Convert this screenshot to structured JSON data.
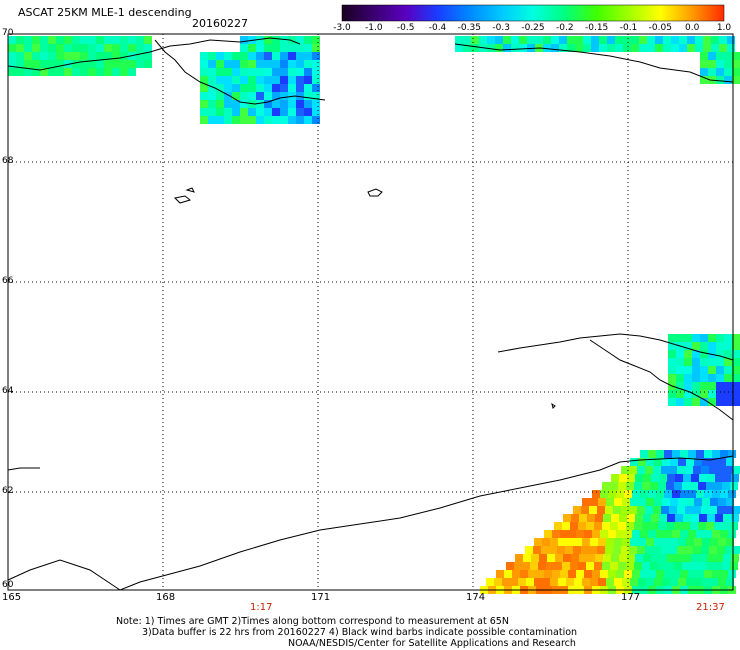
{
  "header": {
    "title": "ASCAT 25KM MLE-1 descending",
    "date": "20160227"
  },
  "colorbar": {
    "labels": [
      "-3.0",
      "-1.0",
      "-0.5",
      "-0.4",
      "-0.35",
      "-0.3",
      "-0.25",
      "-0.2",
      "-0.15",
      "-0.1",
      "-0.05",
      "0.0",
      "1.0"
    ],
    "colors": [
      "#1a0022",
      "#3a0070",
      "#5a00c0",
      "#1a3cff",
      "#0088ff",
      "#00c8ff",
      "#00ffe0",
      "#00ff80",
      "#40ff00",
      "#a0ff00",
      "#ffff00",
      "#ff9a00",
      "#ff2a00"
    ]
  },
  "axes": {
    "lon_labels": [
      "165",
      "168",
      "171",
      "174",
      "177"
    ],
    "lat_labels": [
      "70",
      "68",
      "66",
      "64",
      "62",
      "60"
    ]
  },
  "times": {
    "left": "1:17",
    "right": "21:37"
  },
  "notes": {
    "line1": "Note: 1) Times are GMT 2)Times along bottom correspond to measurement at 65N",
    "line2": "3)Data buffer is 22 hrs from 20160227 4) Black wind barbs indicate possible contamination",
    "line3": "NOAA/NESDIS/Center for Satellite Applications and Research"
  }
}
